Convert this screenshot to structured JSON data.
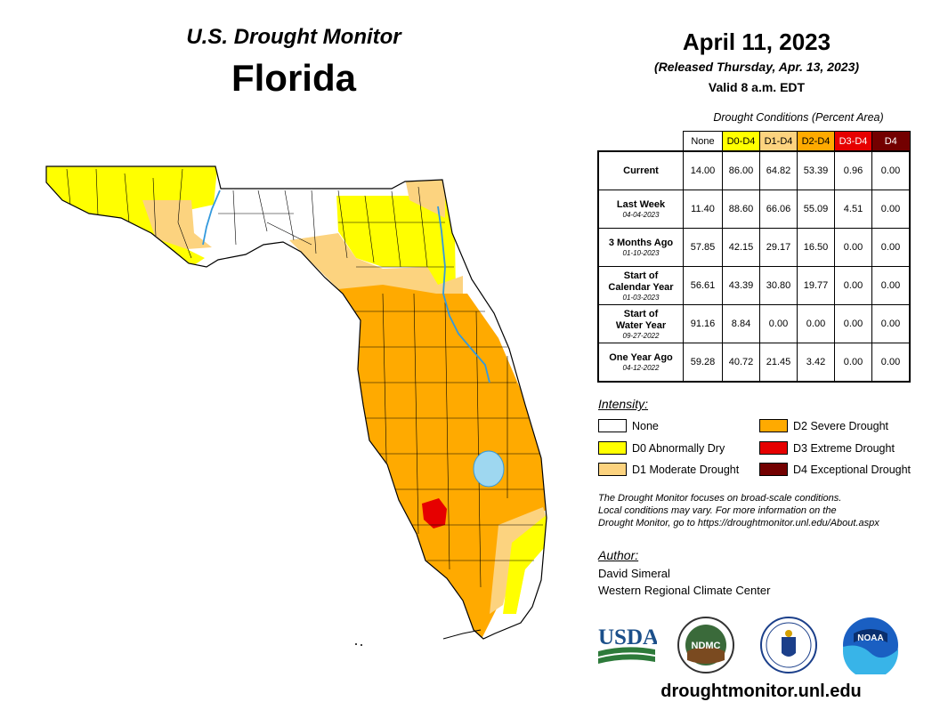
{
  "header": {
    "title": "U.S. Drought Monitor",
    "state": "Florida"
  },
  "date": {
    "title": "April 11, 2023",
    "released": "(Released Thursday, Apr. 13, 2023)",
    "valid": "Valid 8 a.m. EDT"
  },
  "table": {
    "caption": "Drought Conditions (Percent Area)",
    "columns": [
      "None",
      "D0-D4",
      "D1-D4",
      "D2-D4",
      "D3-D4",
      "D4"
    ],
    "column_colors": [
      "#ffffff",
      "#ffff00",
      "#fcd37f",
      "#ffaa00",
      "#e60000",
      "#730000"
    ],
    "rows": [
      {
        "label": "Current",
        "label2": "",
        "date": "",
        "values": [
          "14.00",
          "86.00",
          "64.82",
          "53.39",
          "0.96",
          "0.00"
        ]
      },
      {
        "label": "Last Week",
        "label2": "",
        "date": "04-04-2023",
        "values": [
          "11.40",
          "88.60",
          "66.06",
          "55.09",
          "4.51",
          "0.00"
        ]
      },
      {
        "label": "3 Months Ago",
        "label2": "",
        "date": "01-10-2023",
        "values": [
          "57.85",
          "42.15",
          "29.17",
          "16.50",
          "0.00",
          "0.00"
        ]
      },
      {
        "label": "Start of",
        "label2": "Calendar Year",
        "date": "01-03-2023",
        "values": [
          "56.61",
          "43.39",
          "30.80",
          "19.77",
          "0.00",
          "0.00"
        ]
      },
      {
        "label": "Start of",
        "label2": "Water Year",
        "date": "09-27-2022",
        "values": [
          "91.16",
          "8.84",
          "0.00",
          "0.00",
          "0.00",
          "0.00"
        ]
      },
      {
        "label": "One Year Ago",
        "label2": "",
        "date": "04-12-2022",
        "values": [
          "59.28",
          "40.72",
          "21.45",
          "3.42",
          "0.00",
          "0.00"
        ]
      }
    ]
  },
  "legend": {
    "title": "Intensity:",
    "items": [
      {
        "label": "None",
        "color": "#ffffff"
      },
      {
        "label": "D0 Abnormally Dry",
        "color": "#ffff00"
      },
      {
        "label": "D1 Moderate Drought",
        "color": "#fcd37f"
      },
      {
        "label": "D2 Severe Drought",
        "color": "#ffaa00"
      },
      {
        "label": "D3 Extreme Drought",
        "color": "#e60000"
      },
      {
        "label": "D4 Exceptional Drought",
        "color": "#730000"
      }
    ]
  },
  "note": {
    "line1": "The Drought Monitor focuses on broad-scale conditions.",
    "line2": "Local conditions may vary. For more information on the",
    "line3": "Drought Monitor, go to https://droughtmonitor.unl.edu/About.aspx"
  },
  "author": {
    "title": "Author:",
    "name": "David Simeral",
    "org": "Western Regional Climate Center"
  },
  "logos": {
    "usda": "USDA",
    "ndmc": "NDMC",
    "noaa": "NOAA"
  },
  "website": "droughtmonitor.unl.edu"
}
